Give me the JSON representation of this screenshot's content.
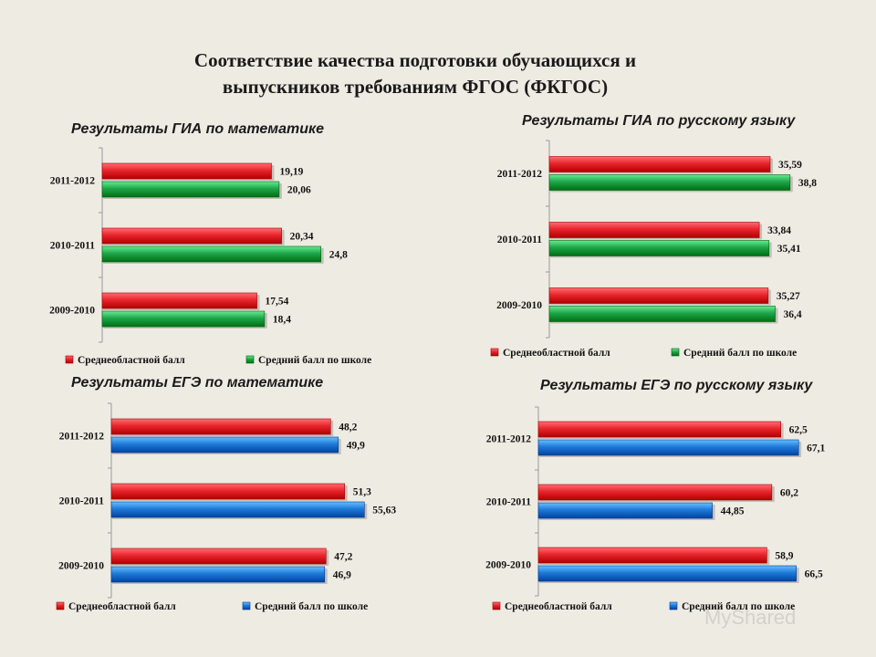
{
  "page": {
    "title_line1": "Соответствие качества подготовки обучающихся и",
    "title_line2": "выпускников требованиям ФГОС (ФКГОС)"
  },
  "colors": {
    "red": "#e8262d",
    "green": "#1fa64a",
    "blue": "#1f7ad8",
    "background": "#eeebe3"
  },
  "chart_data": [
    {
      "type": "bar",
      "orientation": "horizontal",
      "title": "Результаты ГИА по математике",
      "categories": [
        "2011-2012",
        "2010-2011",
        "2009-2010"
      ],
      "series": [
        {
          "name": "Среднеобластной балл",
          "color": "#e8262d",
          "values": [
            19.19,
            20.34,
            17.54
          ],
          "labels": [
            "19,19",
            "20,34",
            "17,54"
          ]
        },
        {
          "name": "Средний балл по школе",
          "color": "#1fa64a",
          "values": [
            20.06,
            24.8,
            18.4
          ],
          "labels": [
            "20,06",
            "24,8",
            "18,4"
          ]
        }
      ],
      "xlim": [
        0,
        30
      ],
      "legend_position": "bottom",
      "grid": false
    },
    {
      "type": "bar",
      "orientation": "horizontal",
      "title": "Результаты ГИА по русскому языку",
      "categories": [
        "2011-2012",
        "2010-2011",
        "2009-2010"
      ],
      "series": [
        {
          "name": "Среднеобластной балл",
          "color": "#e8262d",
          "values": [
            35.59,
            33.84,
            35.27
          ],
          "labels": [
            "35,59",
            "33,84",
            "35,27"
          ]
        },
        {
          "name": "Средний балл по школе",
          "color": "#1fa64a",
          "values": [
            38.8,
            35.41,
            36.4
          ],
          "labels": [
            "38,8",
            "35,41",
            "36,4"
          ]
        }
      ],
      "xlim": [
        0,
        45
      ],
      "legend_position": "bottom",
      "grid": false
    },
    {
      "type": "bar",
      "orientation": "horizontal",
      "title": "Результаты ЕГЭ по математике",
      "categories": [
        "2011-2012",
        "2010-2011",
        "2009-2010"
      ],
      "series": [
        {
          "name": "Среднеобластной балл",
          "color": "#e8262d",
          "values": [
            48.2,
            51.3,
            47.2
          ],
          "labels": [
            "48,2",
            "51,3",
            "47,2"
          ]
        },
        {
          "name": "Средний балл по школе",
          "color": "#1f7ad8",
          "values": [
            49.9,
            55.63,
            46.9
          ],
          "labels": [
            "49,9",
            "55,63",
            "46,9"
          ]
        }
      ],
      "xlim": [
        0,
        65
      ],
      "legend_position": "bottom",
      "grid": false
    },
    {
      "type": "bar",
      "orientation": "horizontal",
      "title": "Результаты ЕГЭ по русскому языку",
      "categories": [
        "2011-2012",
        "2010-2011",
        "2009-2010"
      ],
      "series": [
        {
          "name": "Среднеобластной балл",
          "color": "#e8262d",
          "values": [
            62.5,
            60.2,
            58.9
          ],
          "labels": [
            "62,5",
            "60,2",
            "58,9"
          ]
        },
        {
          "name": "Средний балл по школе",
          "color": "#1f7ad8",
          "values": [
            67.1,
            44.85,
            66.5
          ],
          "labels": [
            "67,1",
            "44,85",
            "66,5"
          ]
        }
      ],
      "xlim": [
        0,
        80
      ],
      "legend_position": "bottom",
      "grid": false
    }
  ],
  "watermark": "MyShared"
}
